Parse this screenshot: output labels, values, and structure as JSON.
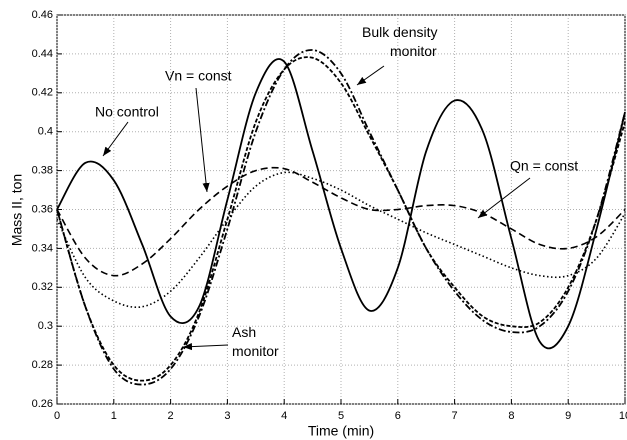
{
  "chart_data": {
    "type": "line",
    "x_label": "Time (min)",
    "y_label": "Mass II, ton",
    "x": [
      0,
      0.5,
      1,
      1.5,
      2,
      2.5,
      3,
      3.5,
      4,
      4.5,
      5,
      5.5,
      6,
      6.5,
      7,
      7.5,
      8,
      8.5,
      9,
      9.5,
      10
    ],
    "series": [
      {
        "name": "No control",
        "color": "#000000",
        "linestyle": "solid",
        "values": [
          0.36,
          0.384,
          0.375,
          0.342,
          0.305,
          0.31,
          0.365,
          0.42,
          0.436,
          0.39,
          0.34,
          0.308,
          0.33,
          0.39,
          0.416,
          0.4,
          0.345,
          0.292,
          0.3,
          0.35,
          0.41
        ]
      },
      {
        "name": "Vn = const",
        "color": "#000000",
        "linestyle": "dashed",
        "values": [
          0.36,
          0.335,
          0.326,
          0.332,
          0.345,
          0.36,
          0.372,
          0.38,
          0.381,
          0.374,
          0.366,
          0.36,
          0.36,
          0.362,
          0.362,
          0.358,
          0.35,
          0.342,
          0.34,
          0.346,
          0.36
        ]
      },
      {
        "name": "Qn = const",
        "color": "#000000",
        "linestyle": "dotted",
        "values": [
          0.355,
          0.325,
          0.313,
          0.31,
          0.318,
          0.335,
          0.355,
          0.372,
          0.379,
          0.376,
          0.37,
          0.362,
          0.355,
          0.348,
          0.342,
          0.336,
          0.33,
          0.326,
          0.326,
          0.335,
          0.358
        ]
      },
      {
        "name": "Bulk density monitor",
        "color": "#000000",
        "linestyle": "dashdot",
        "values": [
          0.36,
          0.31,
          0.278,
          0.27,
          0.278,
          0.305,
          0.35,
          0.4,
          0.432,
          0.442,
          0.43,
          0.4,
          0.37,
          0.34,
          0.318,
          0.303,
          0.297,
          0.3,
          0.318,
          0.355,
          0.41
        ]
      },
      {
        "name": "Ash monitor",
        "color": "#000000",
        "linestyle": "densely dashed",
        "values": [
          0.36,
          0.31,
          0.28,
          0.272,
          0.28,
          0.307,
          0.355,
          0.405,
          0.432,
          0.438,
          0.425,
          0.398,
          0.37,
          0.34,
          0.32,
          0.305,
          0.3,
          0.302,
          0.32,
          0.355,
          0.405
        ]
      }
    ],
    "xlim": [
      0,
      10
    ],
    "xticks": [
      0,
      1,
      2,
      3,
      4,
      5,
      6,
      7,
      8,
      9,
      10
    ],
    "ylim": [
      0.26,
      0.46
    ],
    "yticks": [
      0.26,
      0.28,
      0.3,
      0.32,
      0.34,
      0.36,
      0.38,
      0.4,
      0.42,
      0.44,
      0.46
    ],
    "grid": true
  }
}
